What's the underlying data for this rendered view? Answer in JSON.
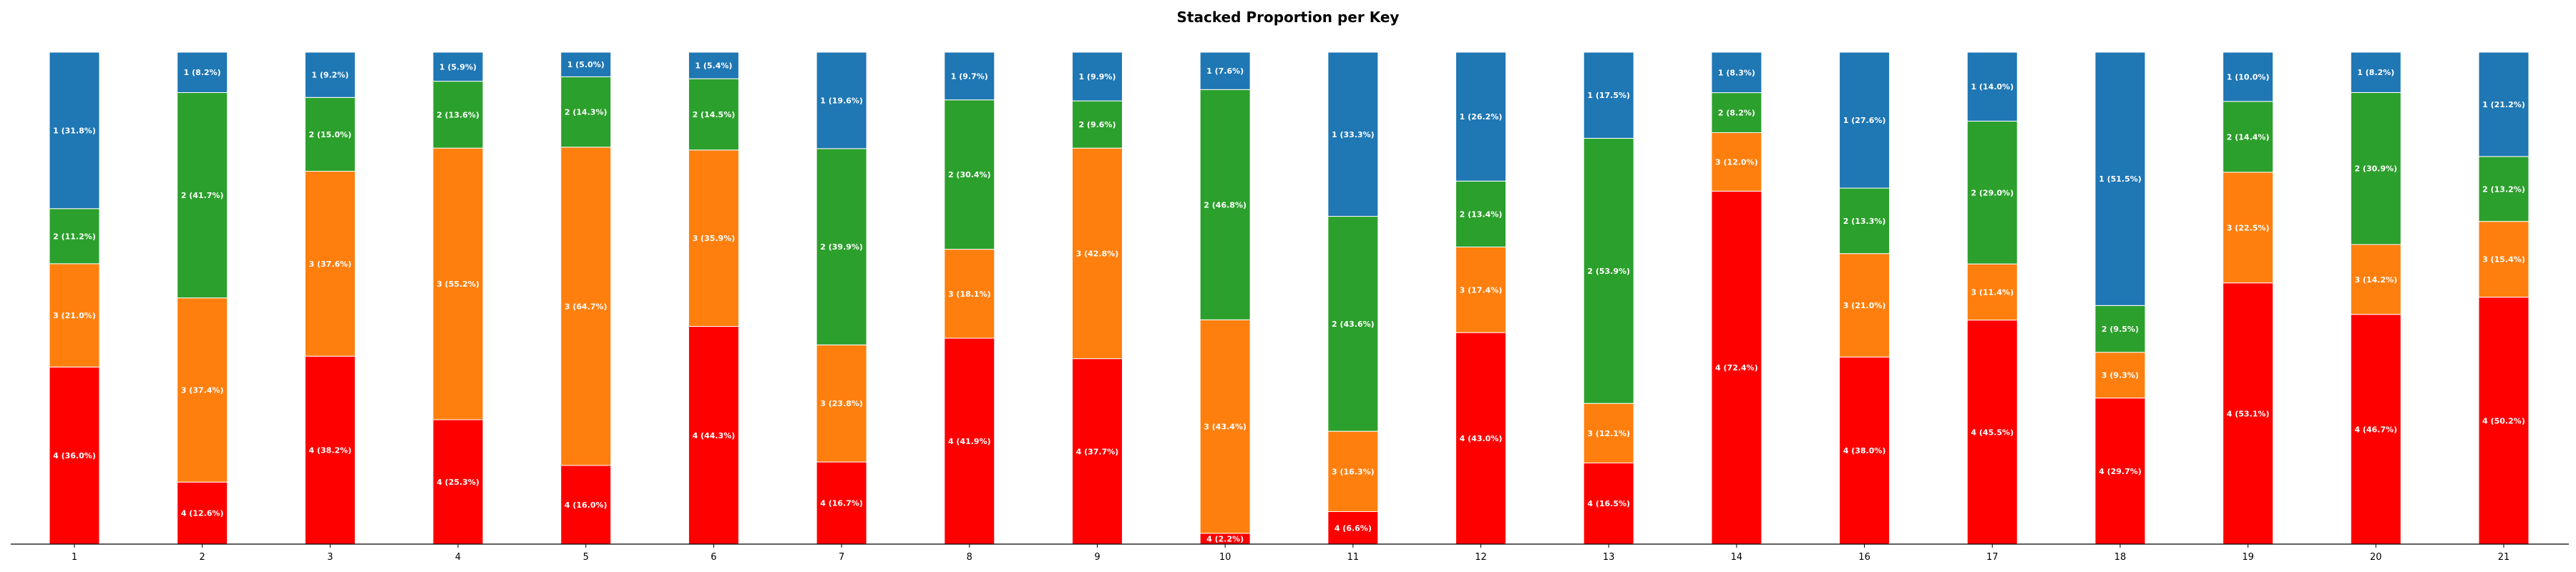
{
  "chart_data": {
    "type": "bar",
    "stacked": true,
    "normalized": true,
    "title": "Stacked Proportion per Key",
    "xlabel": "",
    "ylabel": "",
    "ylim": [
      0,
      1
    ],
    "grid": false,
    "categories": [
      "1",
      "2",
      "3",
      "4",
      "5",
      "6",
      "7",
      "8",
      "9",
      "10",
      "11",
      "12",
      "13",
      "14",
      "16",
      "17",
      "18",
      "19",
      "20",
      "21"
    ],
    "series": [
      {
        "name": "4",
        "color": "#ff0000",
        "values": [
          36.0,
          12.6,
          38.2,
          25.3,
          16.0,
          44.3,
          16.7,
          41.9,
          37.7,
          2.2,
          6.6,
          43.0,
          16.5,
          72.4,
          38.0,
          45.5,
          29.7,
          53.1,
          46.7,
          50.2
        ]
      },
      {
        "name": "3",
        "color": "#ff7f0e",
        "values": [
          21.0,
          37.4,
          37.6,
          55.2,
          64.7,
          35.9,
          23.8,
          18.1,
          42.8,
          43.4,
          16.3,
          17.4,
          12.1,
          12.0,
          21.0,
          11.4,
          9.3,
          22.5,
          14.2,
          15.4
        ]
      },
      {
        "name": "2",
        "color": "#2ca02c",
        "values": [
          11.2,
          41.7,
          15.0,
          13.6,
          14.3,
          14.5,
          39.9,
          30.4,
          9.6,
          46.8,
          43.6,
          13.4,
          53.9,
          8.2,
          13.3,
          29.0,
          9.5,
          14.4,
          30.9,
          13.2
        ]
      },
      {
        "name": "1",
        "color": "#1f77b4",
        "values": [
          31.8,
          8.2,
          9.2,
          5.9,
          5.0,
          5.4,
          19.6,
          9.7,
          9.9,
          7.6,
          33.3,
          26.2,
          17.5,
          8.3,
          27.6,
          14.0,
          51.5,
          10.0,
          8.2,
          21.2
        ]
      }
    ],
    "label_format": "{name} ({value}%)"
  }
}
